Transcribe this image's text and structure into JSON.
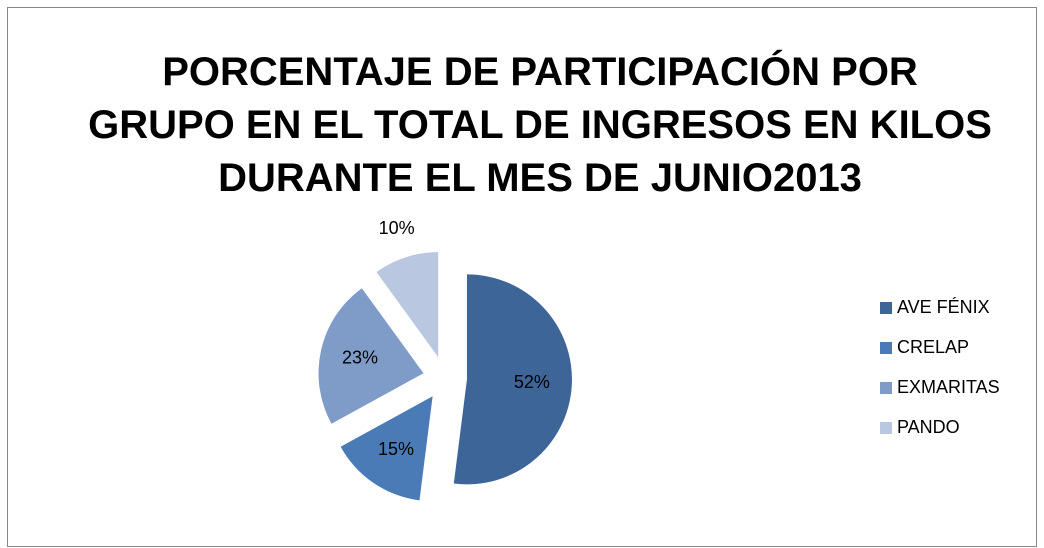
{
  "chart_data": {
    "type": "pie",
    "title": "PORCENTAJE DE PARTICIPACIÓN POR\nGRUPO EN EL TOTAL DE INGRESOS EN KILOS\nDURANTE EL  MES DE JUNIO2013",
    "categories": [
      "AVE FÉNIX",
      "CRELAP",
      "EXMARITAS",
      "PANDO"
    ],
    "values": [
      52,
      15,
      23,
      10
    ],
    "value_labels": [
      "52%",
      "15%",
      "23%",
      "10%"
    ],
    "colors": [
      "#3d6598",
      "#4a7bb7",
      "#7f9cc9",
      "#b9c7e0"
    ],
    "legend": "right"
  }
}
